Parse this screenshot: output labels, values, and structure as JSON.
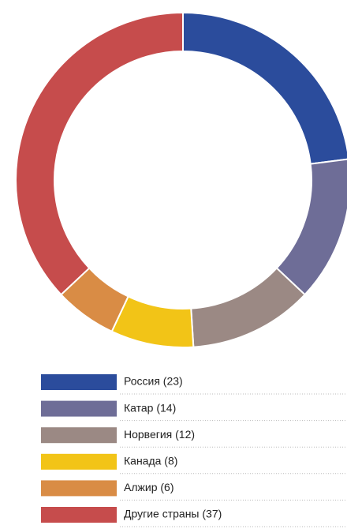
{
  "chart_data": {
    "type": "donut",
    "categories": [
      "Россия (23)",
      "Катар (14)",
      "Норвегия (12)",
      "Канада (8)",
      "Алжир (6)",
      "Другие страны (37)"
    ],
    "values": [
      23,
      14,
      12,
      8,
      6,
      37
    ],
    "colors": [
      "#2b4c9c",
      "#6e6d97",
      "#9b8984",
      "#f2c417",
      "#d98c45",
      "#c64c4c"
    ]
  }
}
